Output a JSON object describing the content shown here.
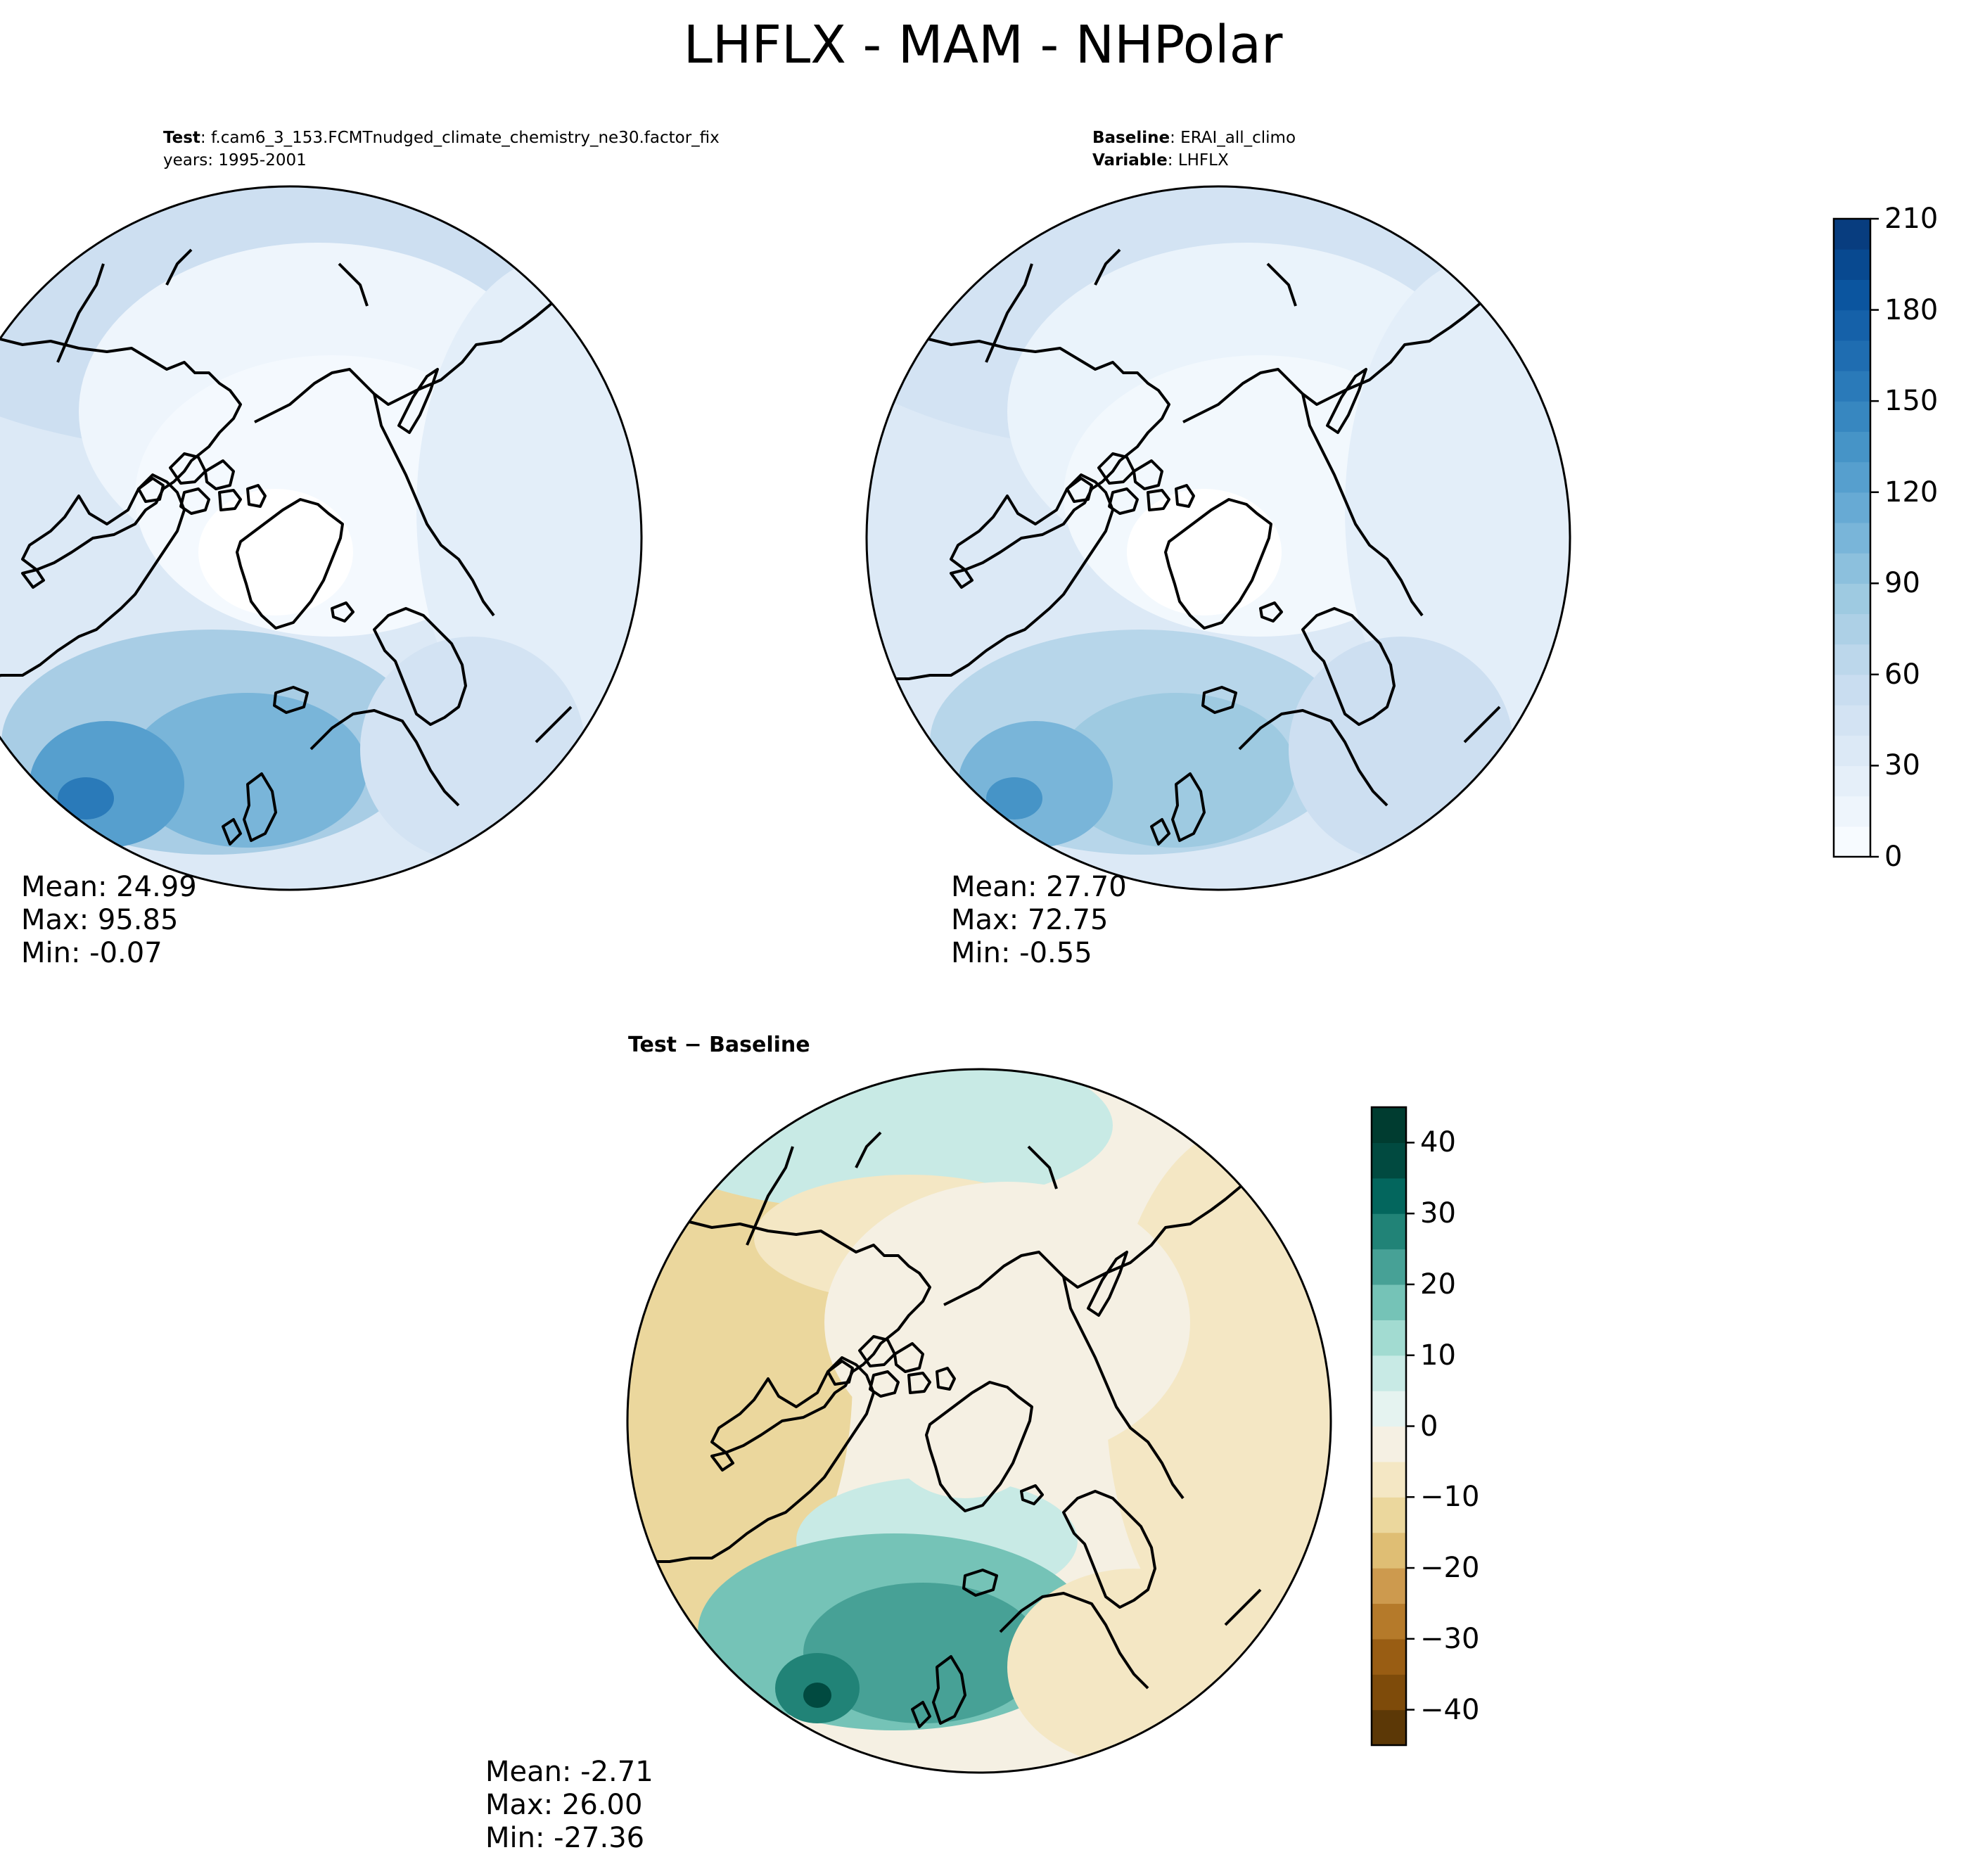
{
  "figure": {
    "title": "LHFLX - MAM - NHPolar"
  },
  "panels": {
    "test": {
      "label": "Test",
      "case": "f.cam6_3_153.FCMTnudged_climate_chemistry_ne30.factor_fix",
      "years": "years: 1995-2001",
      "stats": {
        "mean": "Mean: 24.99",
        "max": "Max: 95.85",
        "min": "Min: -0.07"
      }
    },
    "baseline": {
      "label": "Baseline",
      "case": "ERAI_all_climo",
      "variable_label": "Variable",
      "variable": "LHFLX",
      "stats": {
        "mean": "Mean: 27.70",
        "max": "Max: 72.75",
        "min": "Min: -0.55"
      }
    },
    "diff": {
      "title": "Test − Baseline",
      "stats": {
        "mean": "Mean: -2.71",
        "max": "Max: 26.00",
        "min": "Min: -27.36"
      }
    }
  },
  "colorbars": {
    "main": {
      "colormap": "Blues",
      "min": 0,
      "max": 210,
      "step": 10,
      "ticks": [
        0,
        30,
        60,
        90,
        120,
        150,
        180,
        210
      ],
      "tick_labels": [
        "0",
        "30",
        "60",
        "90",
        "120",
        "150",
        "180",
        "210"
      ],
      "colors": [
        "#f7fbff",
        "#eef5fc",
        "#e5eff9",
        "#dce9f6",
        "#d3e3f3",
        "#c9ddf0",
        "#bcd7eb",
        "#add0e6",
        "#9ecae1",
        "#8cc0dd",
        "#79b5d9",
        "#67aad4",
        "#569fce",
        "#4694c7",
        "#3787c0",
        "#2a7ab9",
        "#1f6db1",
        "#1561a9",
        "#0b559f",
        "#084990",
        "#083d7f"
      ]
    },
    "diff": {
      "colormap": "BrBG",
      "min": -45,
      "max": 45,
      "step": 5,
      "ticks": [
        -40,
        -30,
        -20,
        -10,
        0,
        10,
        20,
        30,
        40
      ],
      "tick_labels": [
        "−40",
        "−30",
        "−20",
        "−10",
        "0",
        "10",
        "20",
        "30",
        "40"
      ],
      "colors": [
        "#5c3806",
        "#7e4b0a",
        "#995d13",
        "#b57a2a",
        "#cd9a4e",
        "#dfbe74",
        "#ebd79d",
        "#f4e7c4",
        "#f5f0e3",
        "#e5f3f0",
        "#c8eae5",
        "#a2dbd1",
        "#75c3b7",
        "#47a196",
        "#218377",
        "#03665d",
        "#014a40",
        "#003c30"
      ]
    }
  },
  "map": {
    "projection": "North Polar Stereographic",
    "region": "NHPolar",
    "coastline_color": "#000000"
  }
}
